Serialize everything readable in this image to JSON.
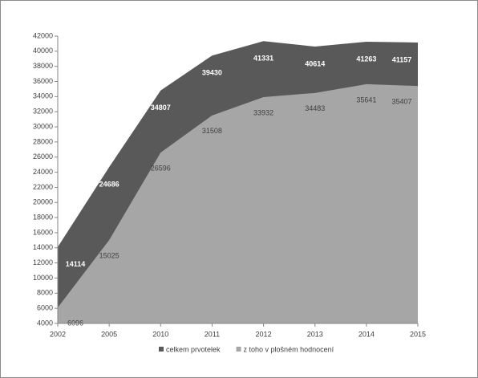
{
  "chart_data": {
    "type": "area",
    "stacked": false,
    "categories": [
      "2002",
      "2005",
      "2010",
      "2011",
      "2012",
      "2013",
      "2014",
      "2015"
    ],
    "series": [
      {
        "name": "celkem prvotelek",
        "color": "#595959",
        "label_color": "#ffffff",
        "values": [
          14114,
          24686,
          34807,
          39430,
          41331,
          40614,
          41263,
          41157
        ]
      },
      {
        "name": "z toho v plošném hodnocení",
        "color": "#a6a6a6",
        "label_color": "#404040",
        "values": [
          6096,
          15025,
          26596,
          31508,
          33932,
          34483,
          35641,
          35407
        ]
      }
    ],
    "ylim": [
      4000,
      42000
    ],
    "yticks": [
      4000,
      6000,
      8000,
      10000,
      12000,
      14000,
      16000,
      18000,
      20000,
      22000,
      24000,
      26000,
      28000,
      30000,
      32000,
      34000,
      36000,
      38000,
      40000,
      42000
    ],
    "grid": false,
    "legend": "bottom"
  }
}
